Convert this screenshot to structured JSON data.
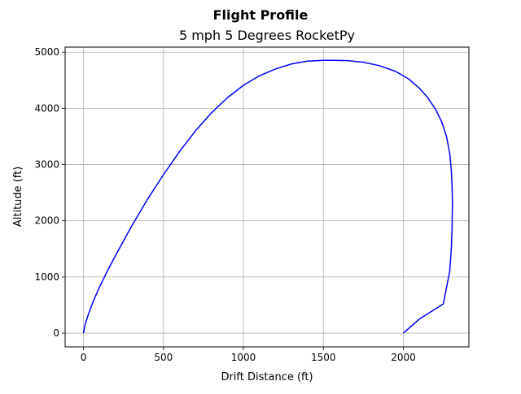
{
  "chart_data": {
    "type": "line",
    "title": "Flight Profile",
    "subtitle": "5 mph 5 Degrees RocketPy",
    "xlabel": "Drift Distance (ft)",
    "ylabel": "Altitude (ft)",
    "xlim": [
      -115,
      2410
    ],
    "ylim": [
      -245,
      5090
    ],
    "xticks": [
      0,
      500,
      1000,
      1500,
      2000
    ],
    "yticks": [
      0,
      1000,
      2000,
      3000,
      4000,
      5000
    ],
    "xtick_labels": [
      "0",
      "500",
      "1000",
      "1500",
      "2000"
    ],
    "ytick_labels": [
      "0",
      "1000",
      "2000",
      "3000",
      "4000",
      "5000"
    ],
    "grid": true,
    "line_color": "#0000ff",
    "series": [
      {
        "x": [
          0,
          10,
          30,
          60,
          100,
          150,
          200,
          250,
          300,
          350,
          400,
          500,
          600,
          700,
          800,
          900,
          1000,
          1100,
          1200,
          1300,
          1400,
          1500,
          1560,
          1650,
          1750,
          1850,
          1950,
          2030,
          2100,
          2150,
          2200,
          2240,
          2270,
          2290,
          2300,
          2305,
          2307,
          2305,
          2300,
          2290,
          2250,
          2100,
          2000
        ],
        "y": [
          0,
          150,
          330,
          560,
          820,
          1110,
          1380,
          1640,
          1900,
          2140,
          2380,
          2820,
          3230,
          3600,
          3920,
          4190,
          4410,
          4580,
          4700,
          4790,
          4840,
          4855,
          4855,
          4850,
          4820,
          4760,
          4660,
          4530,
          4360,
          4200,
          3990,
          3760,
          3500,
          3200,
          2900,
          2600,
          2300,
          1900,
          1500,
          1100,
          520,
          250,
          0
        ]
      }
    ]
  }
}
